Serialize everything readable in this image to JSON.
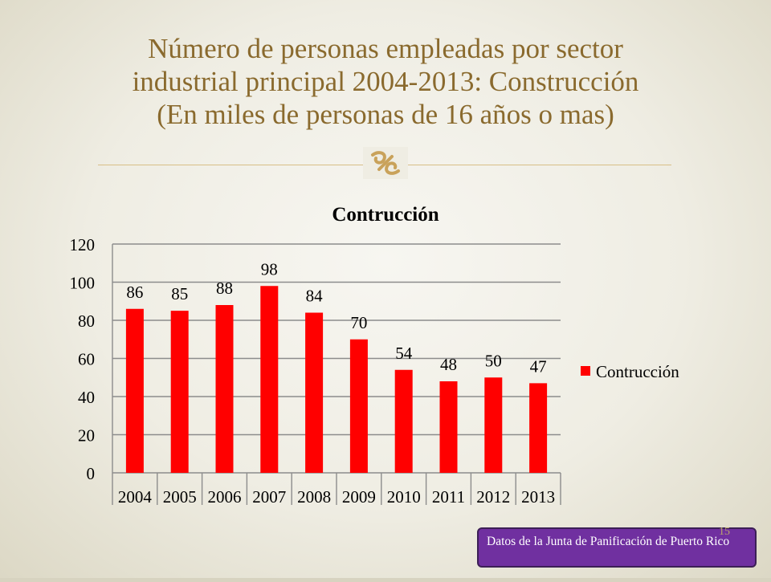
{
  "slide": {
    "title_lines": [
      "Número de personas empleadas por sector",
      "industrial principal 2004-2013: Construcción",
      "(En miles de personas de 16 años o mas)"
    ],
    "source_note": "Datos de la Junta de Panificación de Puerto Rico",
    "page_number": "15",
    "accent_color": "#8a6a2e",
    "ornament_icon": "decorative-flourish-icon"
  },
  "chart_data": {
    "type": "bar",
    "title": "Contrucción",
    "xlabel": "",
    "ylabel": "",
    "categories": [
      "2004",
      "2005",
      "2006",
      "2007",
      "2008",
      "2009",
      "2010",
      "2011",
      "2012",
      "2013"
    ],
    "series": [
      {
        "name": "Contrucción",
        "values": [
          86,
          85,
          88,
          98,
          84,
          70,
          54,
          48,
          50,
          47
        ],
        "color": "#ff0000"
      }
    ],
    "ylim": [
      0,
      120
    ],
    "yticks": [
      0,
      20,
      40,
      60,
      80,
      100,
      120
    ],
    "grid": true,
    "data_labels": true,
    "legend_position": "right"
  }
}
